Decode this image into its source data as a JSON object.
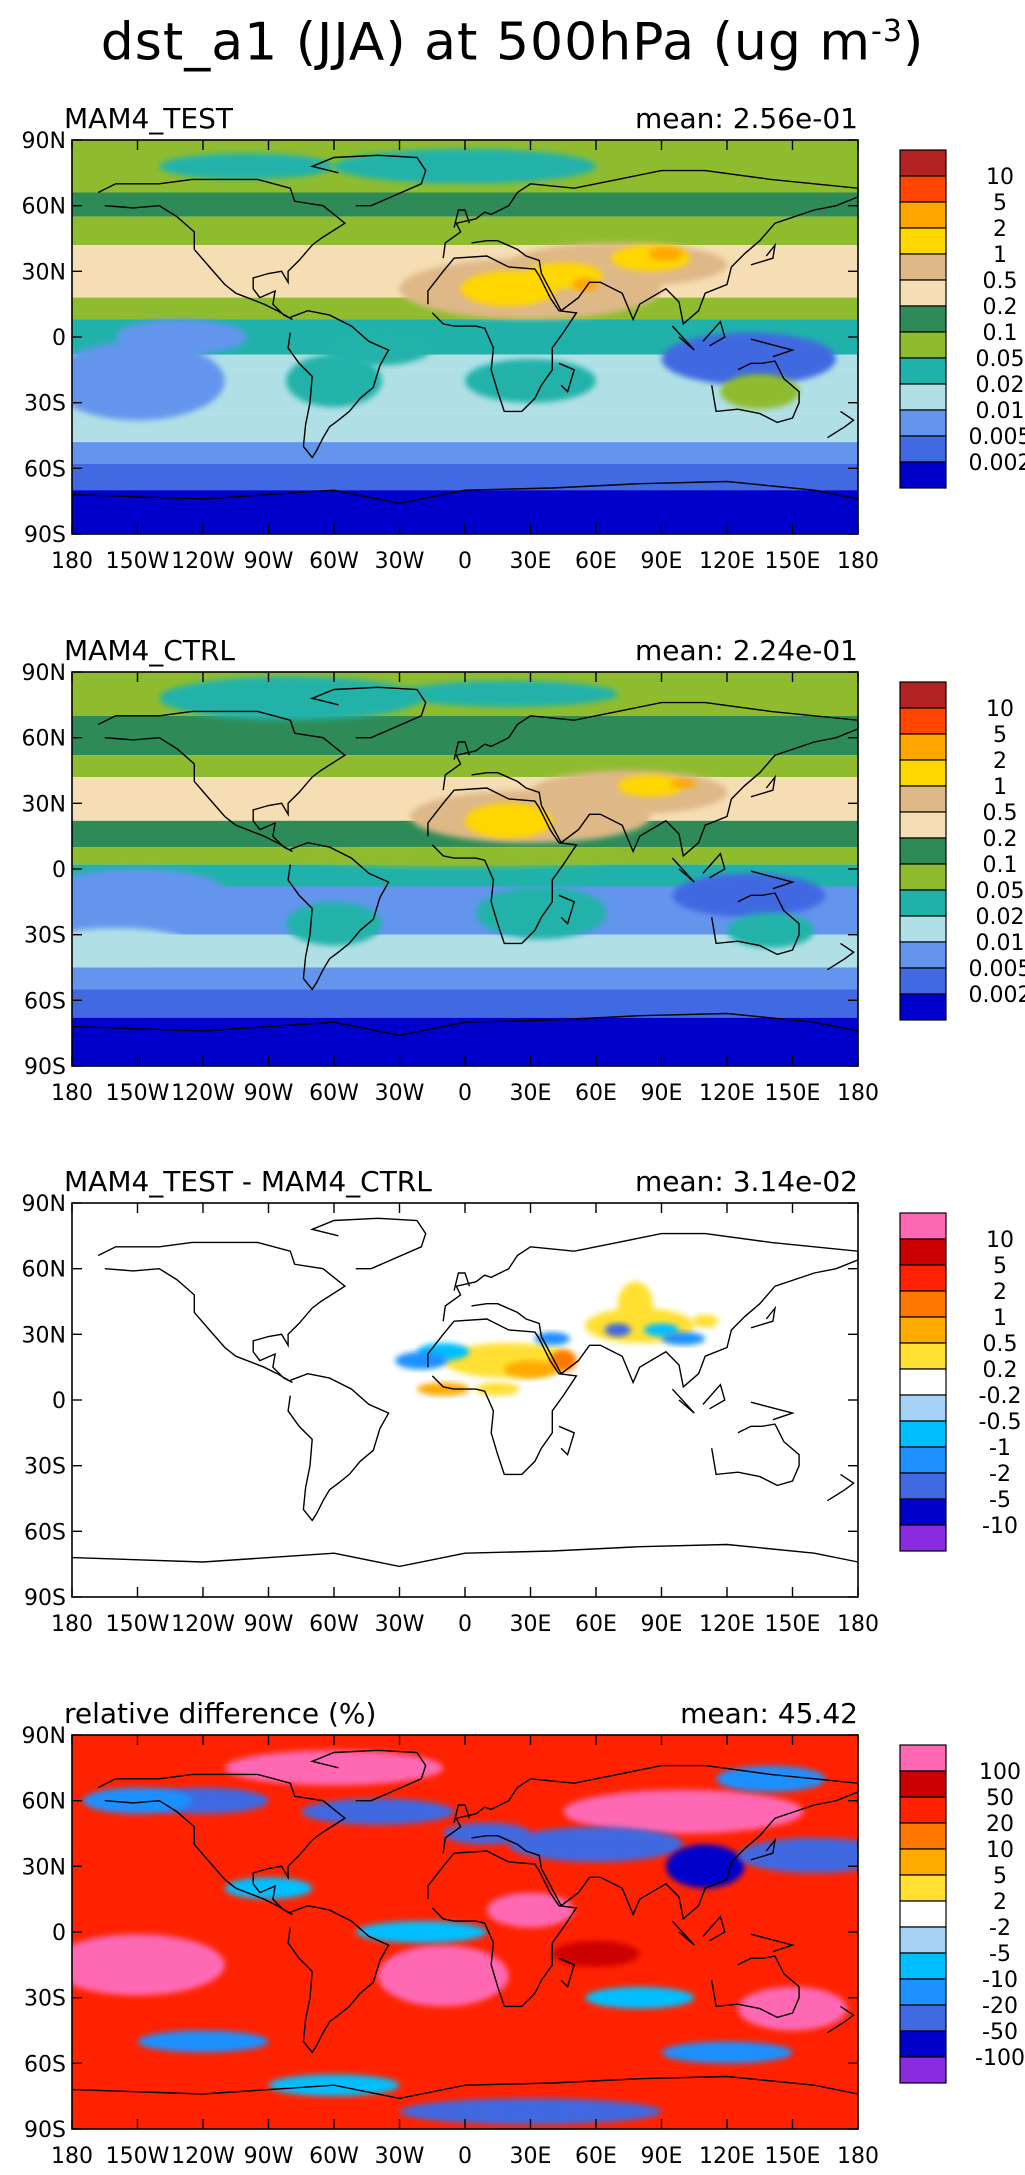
{
  "figure": {
    "title_main": "dst_a1 (JJA) at 500hPa (ug m",
    "title_exp": "-3",
    "title_close": ")"
  },
  "axes": {
    "xticks": [
      "180",
      "150W",
      "120W",
      "90W",
      "60W",
      "30W",
      "0",
      "30E",
      "60E",
      "90E",
      "120E",
      "150E",
      "180"
    ],
    "yticks": [
      "90N",
      "60N",
      "30N",
      "0",
      "30S",
      "60S",
      "90S"
    ]
  },
  "chart_data": [
    {
      "type": "heatmap",
      "title": "MAM4_TEST",
      "mean_text": "mean: 2.56e-01",
      "x_range": [
        -180,
        180
      ],
      "y_range": [
        -90,
        90
      ],
      "levels": [
        "10",
        "5",
        "2",
        "1",
        "0.5",
        "0.2",
        "0.1",
        "0.05",
        "0.02",
        "0.01",
        "0.005",
        "0.002"
      ],
      "colors": [
        "#b22222",
        "#ff4500",
        "#ffa500",
        "#ffd700",
        "#deb887",
        "#f5deb3",
        "#2e8b57",
        "#8fbc2f",
        "#20b2aa",
        "#b0e0e6",
        "#6495ed",
        "#4169e1",
        "#0000cd"
      ]
    },
    {
      "type": "heatmap",
      "title": "MAM4_CTRL",
      "mean_text": "mean: 2.24e-01",
      "x_range": [
        -180,
        180
      ],
      "y_range": [
        -90,
        90
      ],
      "levels": [
        "10",
        "5",
        "2",
        "1",
        "0.5",
        "0.2",
        "0.1",
        "0.05",
        "0.02",
        "0.01",
        "0.005",
        "0.002"
      ],
      "colors": [
        "#b22222",
        "#ff4500",
        "#ffa500",
        "#ffd700",
        "#deb887",
        "#f5deb3",
        "#2e8b57",
        "#8fbc2f",
        "#20b2aa",
        "#b0e0e6",
        "#6495ed",
        "#4169e1",
        "#0000cd"
      ]
    },
    {
      "type": "heatmap",
      "title": "MAM4_TEST - MAM4_CTRL",
      "mean_text": "mean: 3.14e-02",
      "x_range": [
        -180,
        180
      ],
      "y_range": [
        -90,
        90
      ],
      "levels": [
        "10",
        "5",
        "2",
        "1",
        "0.5",
        "0.2",
        "-0.2",
        "-0.5",
        "-1",
        "-2",
        "-5",
        "-10"
      ],
      "colors": [
        "#ff69b4",
        "#cc0000",
        "#ff2200",
        "#ff7700",
        "#ffaa00",
        "#ffe033",
        "#ffffff",
        "#a6d2f5",
        "#00bfff",
        "#1e90ff",
        "#4169e1",
        "#0000cd",
        "#8a2be2"
      ]
    },
    {
      "type": "heatmap",
      "title": "relative difference (%)",
      "mean_text": "mean: 45.42",
      "x_range": [
        -180,
        180
      ],
      "y_range": [
        -90,
        90
      ],
      "levels": [
        "100",
        "50",
        "20",
        "10",
        "5",
        "2",
        "-2",
        "-5",
        "-10",
        "-20",
        "-50",
        "-100"
      ],
      "colors": [
        "#ff69b4",
        "#cc0000",
        "#ff2200",
        "#ff7700",
        "#ffaa00",
        "#ffe033",
        "#ffffff",
        "#a6d2f5",
        "#00bfff",
        "#1e90ff",
        "#4169e1",
        "#0000cd",
        "#8a2be2"
      ]
    }
  ]
}
